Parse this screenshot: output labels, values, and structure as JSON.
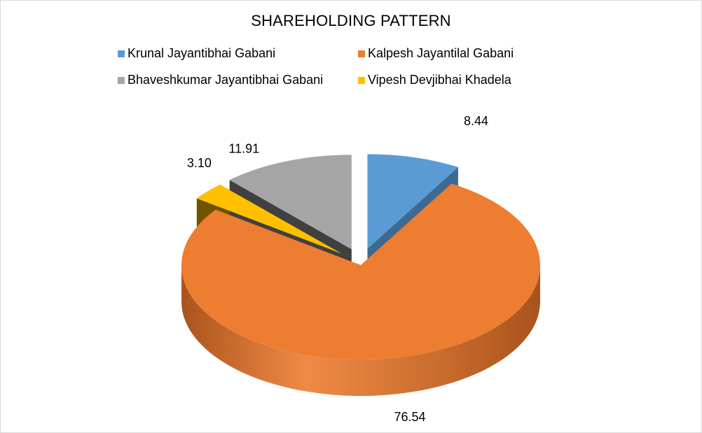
{
  "chart_data": {
    "type": "pie",
    "title": "SHAREHOLDING PATTERN",
    "style": "3d-exploded",
    "legend_position": "top",
    "slices": [
      {
        "name": "Krunal Jayantibhai Gabani",
        "value": 8.44,
        "label": "8.44",
        "color": "#5b9bd5",
        "side_color": "#3e6a92",
        "exploded": true
      },
      {
        "name": "Kalpesh Jayantilal Gabani",
        "value": 76.54,
        "label": "76.54",
        "color": "#ed7d31",
        "side_color": "#a9531c",
        "exploded": false
      },
      {
        "name": "Vipesh Devjibhai Khadela",
        "value": 3.1,
        "label": "3.10",
        "color": "#ffc000",
        "side_color": "#6e5300",
        "exploded": true
      },
      {
        "name": "Bhaveshkumar Jayantibhai Gabani",
        "value": 11.91,
        "label": "11.91",
        "color": "#a5a5a5",
        "side_color": "#404040",
        "exploded": true
      }
    ],
    "legend": [
      {
        "name": "Krunal Jayantibhai Gabani",
        "color": "#5b9bd5"
      },
      {
        "name": "Kalpesh Jayantilal Gabani",
        "color": "#ed7d31"
      },
      {
        "name": "Bhaveshkumar Jayantibhai Gabani",
        "color": "#a5a5a5"
      },
      {
        "name": "Vipesh Devjibhai Khadela",
        "color": "#ffc000"
      }
    ]
  }
}
